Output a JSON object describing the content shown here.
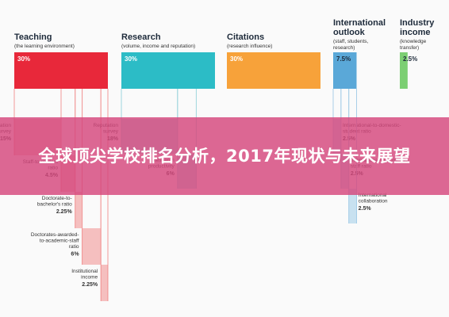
{
  "banner": {
    "title": "全球顶尖学校排名分析，2017年现状与未来展望"
  },
  "chart_data": {
    "type": "bar",
    "categories": [
      {
        "key": "teaching",
        "title_lines": [
          "Teaching"
        ],
        "subtitle_lines": [
          "(the learning environment)"
        ],
        "value": 30,
        "value_label": "30%",
        "color": "#e8283a",
        "text_color": "#ffffff"
      },
      {
        "key": "research",
        "title_lines": [
          "Research"
        ],
        "subtitle_lines": [
          "(volume, income and reputation)"
        ],
        "value": 30,
        "value_label": "30%",
        "color": "#2cbcc6",
        "text_color": "#ffffff"
      },
      {
        "key": "citations",
        "title_lines": [
          "Citations"
        ],
        "subtitle_lines": [
          "(research influence)"
        ],
        "value": 30,
        "value_label": "30%",
        "color": "#f7a23a",
        "text_color": "#ffffff"
      },
      {
        "key": "international",
        "title_lines": [
          "International",
          "outlook"
        ],
        "subtitle_lines": [
          "(staff, students,",
          "research)"
        ],
        "value": 7.5,
        "value_label": "7.5%",
        "color": "#5aa8d8",
        "text_color": "#1d2a3a"
      },
      {
        "key": "industry",
        "title_lines": [
          "Industry",
          "income"
        ],
        "subtitle_lines": [
          "(knowledge",
          "transfer)"
        ],
        "value": 2.5,
        "value_label": "2.5%",
        "color": "#7ccf73",
        "text_color": "#1d2a3a"
      }
    ],
    "breakdown": [
      {
        "parent": "teaching",
        "label_lines": [
          "Reputation",
          "survey"
        ],
        "value": 15,
        "value_label": "15%"
      },
      {
        "parent": "teaching",
        "label_lines": [
          "Staff-to-student",
          "ratio"
        ],
        "value": 4.5,
        "value_label": "4.5%"
      },
      {
        "parent": "teaching",
        "label_lines": [
          "Doctorate-to-",
          "bachelor's ratio"
        ],
        "value": 2.25,
        "value_label": "2.25%"
      },
      {
        "parent": "teaching",
        "label_lines": [
          "Doctorates-awarded-",
          "to-academic-staff",
          "ratio"
        ],
        "value": 6,
        "value_label": "6%"
      },
      {
        "parent": "teaching",
        "label_lines": [
          "Institutional",
          "income"
        ],
        "value": 2.25,
        "value_label": "2.25%"
      },
      {
        "parent": "research",
        "label_lines": [
          "Reputation",
          "survey"
        ],
        "value": 18,
        "value_label": "18%"
      },
      {
        "parent": "research",
        "label_lines": [
          "Research",
          "productivity"
        ],
        "value": 6,
        "value_label": "6%"
      },
      {
        "parent": "international",
        "label_lines": [
          "International-to-domestic-",
          "student ratio"
        ],
        "value": 2.5,
        "value_label": "2.5%"
      },
      {
        "parent": "international",
        "label_lines": [
          "International-to-domestic-",
          "staff ratio"
        ],
        "value": 2.5,
        "value_label": "2.5%"
      },
      {
        "parent": "international",
        "label_lines": [
          "International",
          "collaboration"
        ],
        "value": 2.5,
        "value_label": "2.5%"
      }
    ],
    "title": "",
    "xlabel": "",
    "ylabel": "",
    "legend": "none",
    "grid": false
  }
}
